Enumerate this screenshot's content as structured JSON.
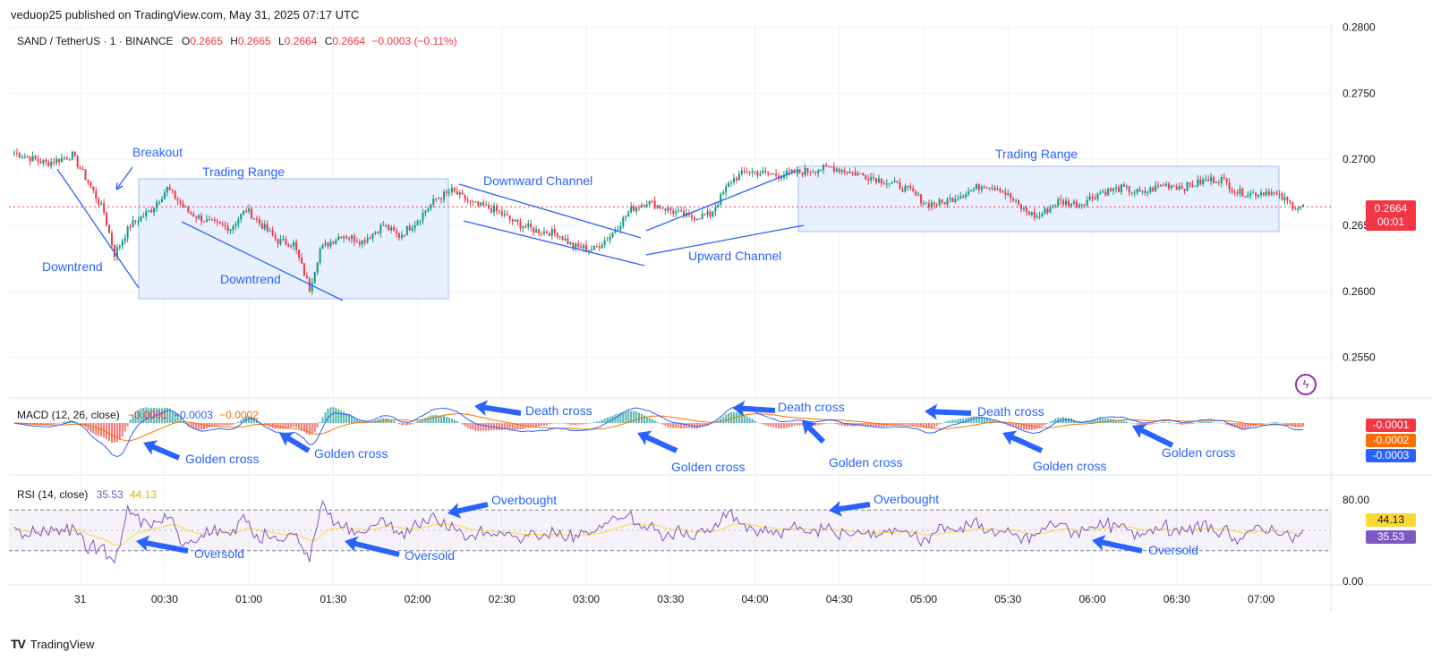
{
  "publisher_line": "veduop25 published on TradingView.com, May 31, 2025 07:17 UTC",
  "footer": {
    "logo": "TV",
    "brand": "TradingView"
  },
  "legend": {
    "symbol": "SAND / TetherUS · 1 · BINANCE",
    "o_label": "O",
    "o": "0.2665",
    "h_label": "H",
    "h": "0.2665",
    "l_label": "L",
    "l": "0.2664",
    "c_label": "C",
    "c": "0.2664",
    "change": "−0.0003 (−0.11%)"
  },
  "macd_legend": {
    "name": "MACD (12, 26, close)",
    "hist": "−0.0001",
    "macd": "−0.0003",
    "signal": "−0.0002"
  },
  "rsi_legend": {
    "name": "RSI (14, close)",
    "rsi": "35.53",
    "ma": "44.13"
  },
  "price_tag": {
    "price": "0.2664",
    "countdown": "00:01"
  },
  "macd_tags": [
    "-0.0001",
    "-0.0002",
    "-0.0003"
  ],
  "rsi_tags": [
    "44.13",
    "35.53"
  ],
  "colors": {
    "up": "#089981",
    "down": "#f23645",
    "macd": "#2962ff",
    "signal": "#ff6d00",
    "rsi": "#7e57c2",
    "rsi_ma": "#fdd835",
    "drawing": "#2962ff",
    "box_fill": "#e3eefc",
    "annotation": "#2962ff"
  },
  "chart_data": [
    {
      "type": "candlestick",
      "title": "SAND / TetherUS · 1 · BINANCE",
      "ylim": [
        0.252,
        0.2803
      ],
      "y_ticks": [
        "0.2800",
        "0.2750",
        "0.2700",
        "0.2650",
        "0.2600",
        "0.2550"
      ],
      "x_ticks": [
        "31",
        "00:30",
        "01:00",
        "01:30",
        "02:00",
        "02:30",
        "03:00",
        "03:30",
        "04:00",
        "04:30",
        "05:00",
        "05:30",
        "06:00",
        "06:30",
        "07:00"
      ],
      "last_price": 0.2664,
      "close_path": [
        [
          0,
          0.2705
        ],
        [
          12,
          0.2697
        ],
        [
          22,
          0.2703
        ],
        [
          28,
          0.2683
        ],
        [
          34,
          0.266
        ],
        [
          38,
          0.2628
        ],
        [
          44,
          0.265
        ],
        [
          52,
          0.2662
        ],
        [
          58,
          0.2678
        ],
        [
          66,
          0.266
        ],
        [
          74,
          0.2652
        ],
        [
          82,
          0.2648
        ],
        [
          88,
          0.2662
        ],
        [
          94,
          0.265
        ],
        [
          100,
          0.2638
        ],
        [
          106,
          0.2636
        ],
        [
          112,
          0.2602
        ],
        [
          116,
          0.2632
        ],
        [
          124,
          0.2643
        ],
        [
          132,
          0.2638
        ],
        [
          140,
          0.265
        ],
        [
          146,
          0.2642
        ],
        [
          152,
          0.2652
        ],
        [
          160,
          0.267
        ],
        [
          166,
          0.2676
        ],
        [
          174,
          0.2666
        ],
        [
          182,
          0.2662
        ],
        [
          190,
          0.2652
        ],
        [
          198,
          0.2646
        ],
        [
          206,
          0.2644
        ],
        [
          212,
          0.2634
        ],
        [
          220,
          0.2632
        ],
        [
          226,
          0.2642
        ],
        [
          234,
          0.2662
        ],
        [
          240,
          0.2668
        ],
        [
          248,
          0.2662
        ],
        [
          256,
          0.2656
        ],
        [
          264,
          0.2658
        ],
        [
          272,
          0.2684
        ],
        [
          278,
          0.2691
        ],
        [
          290,
          0.2688
        ],
        [
          300,
          0.2691
        ],
        [
          310,
          0.2694
        ],
        [
          318,
          0.269
        ],
        [
          326,
          0.2686
        ],
        [
          334,
          0.2681
        ],
        [
          340,
          0.2676
        ],
        [
          346,
          0.2666
        ],
        [
          352,
          0.2667
        ],
        [
          360,
          0.2674
        ],
        [
          368,
          0.2681
        ],
        [
          374,
          0.2678
        ],
        [
          382,
          0.2663
        ],
        [
          388,
          0.2656
        ],
        [
          396,
          0.2668
        ],
        [
          404,
          0.2666
        ],
        [
          412,
          0.2675
        ],
        [
          420,
          0.2678
        ],
        [
          428,
          0.2674
        ],
        [
          436,
          0.2681
        ],
        [
          444,
          0.2679
        ],
        [
          452,
          0.2684
        ],
        [
          458,
          0.2685
        ],
        [
          464,
          0.2675
        ],
        [
          470,
          0.2674
        ],
        [
          476,
          0.2676
        ],
        [
          482,
          0.2669
        ],
        [
          486,
          0.2664
        ]
      ],
      "annotations": [
        "Breakout",
        "Trading Range",
        "Downtrend",
        "Downtrend",
        "Downward Channel",
        "Upward Channel",
        "Trading Range"
      ]
    },
    {
      "type": "macd",
      "title": "MACD (12, 26, close)",
      "values": {
        "histogram": -0.0001,
        "macd": -0.0003,
        "signal": -0.0002
      },
      "annotations": [
        "Golden cross",
        "Golden cross",
        "Death cross",
        "Golden cross",
        "Death cross",
        "Golden cross",
        "Death cross",
        "Golden cross",
        "Golden cross"
      ]
    },
    {
      "type": "line",
      "title": "RSI (14, close)",
      "ylim": [
        0,
        100
      ],
      "y_ticks": [
        "80.00",
        "44.13",
        "35.53",
        "0.00"
      ],
      "band": [
        30,
        70
      ],
      "values": {
        "rsi": 35.53,
        "rsi_ma": 44.13
      },
      "annotations": [
        "Overbought",
        "Overbought",
        "Oversold",
        "Oversold",
        "Oversold"
      ]
    }
  ],
  "text_annotations": {
    "breakout": "Breakout",
    "trading_range_1": "Trading Range",
    "downtrend_1": "Downtrend",
    "downtrend_2": "Downtrend",
    "downward_channel": "Downward Channel",
    "upward_channel": "Upward Channel",
    "trading_range_2": "Trading Range",
    "golden_cross": "Golden cross",
    "death_cross": "Death cross",
    "overbought": "Overbought",
    "oversold": "Oversold"
  }
}
